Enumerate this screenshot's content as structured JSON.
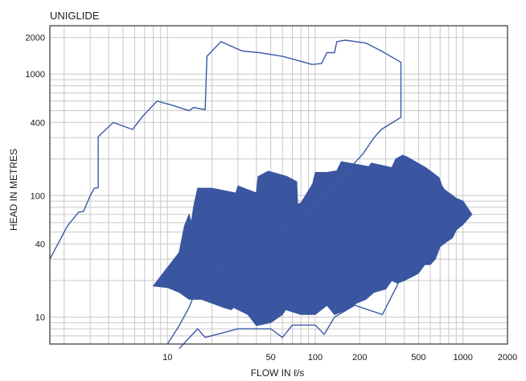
{
  "chart_data": {
    "type": "area",
    "title": "UNIGLIDE",
    "xlabel": "FLOW IN ℓ/s",
    "ylabel": "HEAD IN METRES",
    "xscale": "log",
    "yscale": "log",
    "xlim": [
      1.6,
      2000
    ],
    "ylim": [
      6,
      2500
    ],
    "grid": true,
    "x_ticks": [
      10,
      50,
      100,
      200,
      500,
      1000,
      2000
    ],
    "y_ticks": [
      10,
      40,
      100,
      400,
      1000,
      2000
    ],
    "colors": {
      "area": "#3a56a0",
      "envelope": "#3b5aa6",
      "grid": "#c8c8c8"
    },
    "envelope": [
      [
        1.6,
        30
      ],
      [
        2.1,
        56
      ],
      [
        2.5,
        73
      ],
      [
        2.7,
        74
      ],
      [
        3,
        100
      ],
      [
        3.2,
        115
      ],
      [
        3.4,
        116
      ],
      [
        3.4,
        305
      ],
      [
        4.3,
        400
      ],
      [
        5.8,
        350
      ],
      [
        6.8,
        450
      ],
      [
        8.5,
        600
      ],
      [
        11,
        550
      ],
      [
        14,
        500
      ],
      [
        15,
        530
      ],
      [
        18,
        510
      ],
      [
        18.5,
        1400
      ],
      [
        23,
        1850
      ],
      [
        32,
        1550
      ],
      [
        42,
        1500
      ],
      [
        60,
        1400
      ],
      [
        72,
        1320
      ],
      [
        95,
        1200
      ],
      [
        110,
        1220
      ],
      [
        120,
        1500
      ],
      [
        135,
        1500
      ],
      [
        140,
        1850
      ],
      [
        160,
        1900
      ],
      [
        220,
        1800
      ],
      [
        280,
        1550
      ],
      [
        380,
        1250
      ],
      [
        380,
        440
      ],
      [
        280,
        350
      ],
      [
        250,
        300
      ],
      [
        210,
        220
      ],
      [
        150,
        140
      ],
      [
        100,
        82
      ],
      [
        60,
        52
      ],
      [
        40,
        38
      ],
      [
        28,
        30
      ],
      [
        22,
        25
      ],
      [
        18,
        21
      ],
      [
        16,
        18
      ],
      [
        14,
        12
      ],
      [
        12,
        8.5
      ],
      [
        10,
        6
      ]
    ],
    "low_curve": [
      [
        12,
        5.5
      ],
      [
        16,
        8
      ],
      [
        18,
        6.8
      ],
      [
        30,
        8
      ],
      [
        50,
        8
      ],
      [
        60,
        6.8
      ],
      [
        70,
        8.6
      ],
      [
        100,
        8.6
      ],
      [
        115,
        7.2
      ],
      [
        135,
        10
      ],
      [
        185,
        12.5
      ],
      [
        285,
        10.5
      ],
      [
        380,
        21
      ]
    ],
    "operating_area": [
      [
        8,
        18
      ],
      [
        12,
        34
      ],
      [
        13,
        56
      ],
      [
        14,
        70
      ],
      [
        14.5,
        60
      ],
      [
        15,
        80
      ],
      [
        16,
        115
      ],
      [
        20,
        115
      ],
      [
        29,
        105
      ],
      [
        30,
        120
      ],
      [
        40,
        105
      ],
      [
        41,
        143
      ],
      [
        48,
        159
      ],
      [
        64,
        144
      ],
      [
        75,
        130
      ],
      [
        76,
        85
      ],
      [
        80,
        87
      ],
      [
        96,
        125
      ],
      [
        100,
        155
      ],
      [
        120,
        155
      ],
      [
        140,
        160
      ],
      [
        150,
        190
      ],
      [
        170,
        185
      ],
      [
        230,
        173
      ],
      [
        240,
        185
      ],
      [
        330,
        170
      ],
      [
        350,
        200
      ],
      [
        390,
        215
      ],
      [
        420,
        207
      ],
      [
        560,
        170
      ],
      [
        690,
        140
      ],
      [
        720,
        120
      ],
      [
        750,
        112
      ],
      [
        900,
        95
      ],
      [
        1000,
        90
      ],
      [
        1150,
        70
      ],
      [
        1000,
        58
      ],
      [
        900,
        52
      ],
      [
        850,
        45
      ],
      [
        780,
        42
      ],
      [
        700,
        38
      ],
      [
        650,
        30
      ],
      [
        600,
        27
      ],
      [
        550,
        27
      ],
      [
        500,
        23
      ],
      [
        470,
        22
      ],
      [
        400,
        20
      ],
      [
        360,
        19
      ],
      [
        330,
        20
      ],
      [
        300,
        17
      ],
      [
        250,
        16
      ],
      [
        220,
        14
      ],
      [
        190,
        13
      ],
      [
        165,
        11.5
      ],
      [
        135,
        10.5
      ],
      [
        120,
        12.5
      ],
      [
        100,
        10.5
      ],
      [
        80,
        10.5
      ],
      [
        63,
        11.5
      ],
      [
        60,
        10.5
      ],
      [
        50,
        9
      ],
      [
        40,
        8.5
      ],
      [
        35,
        10.5
      ],
      [
        28,
        12
      ],
      [
        27,
        11.5
      ],
      [
        24,
        12
      ],
      [
        20,
        13
      ],
      [
        17,
        14
      ],
      [
        14,
        14
      ],
      [
        12,
        16
      ],
      [
        10,
        17.5
      ],
      [
        8,
        18
      ]
    ]
  }
}
